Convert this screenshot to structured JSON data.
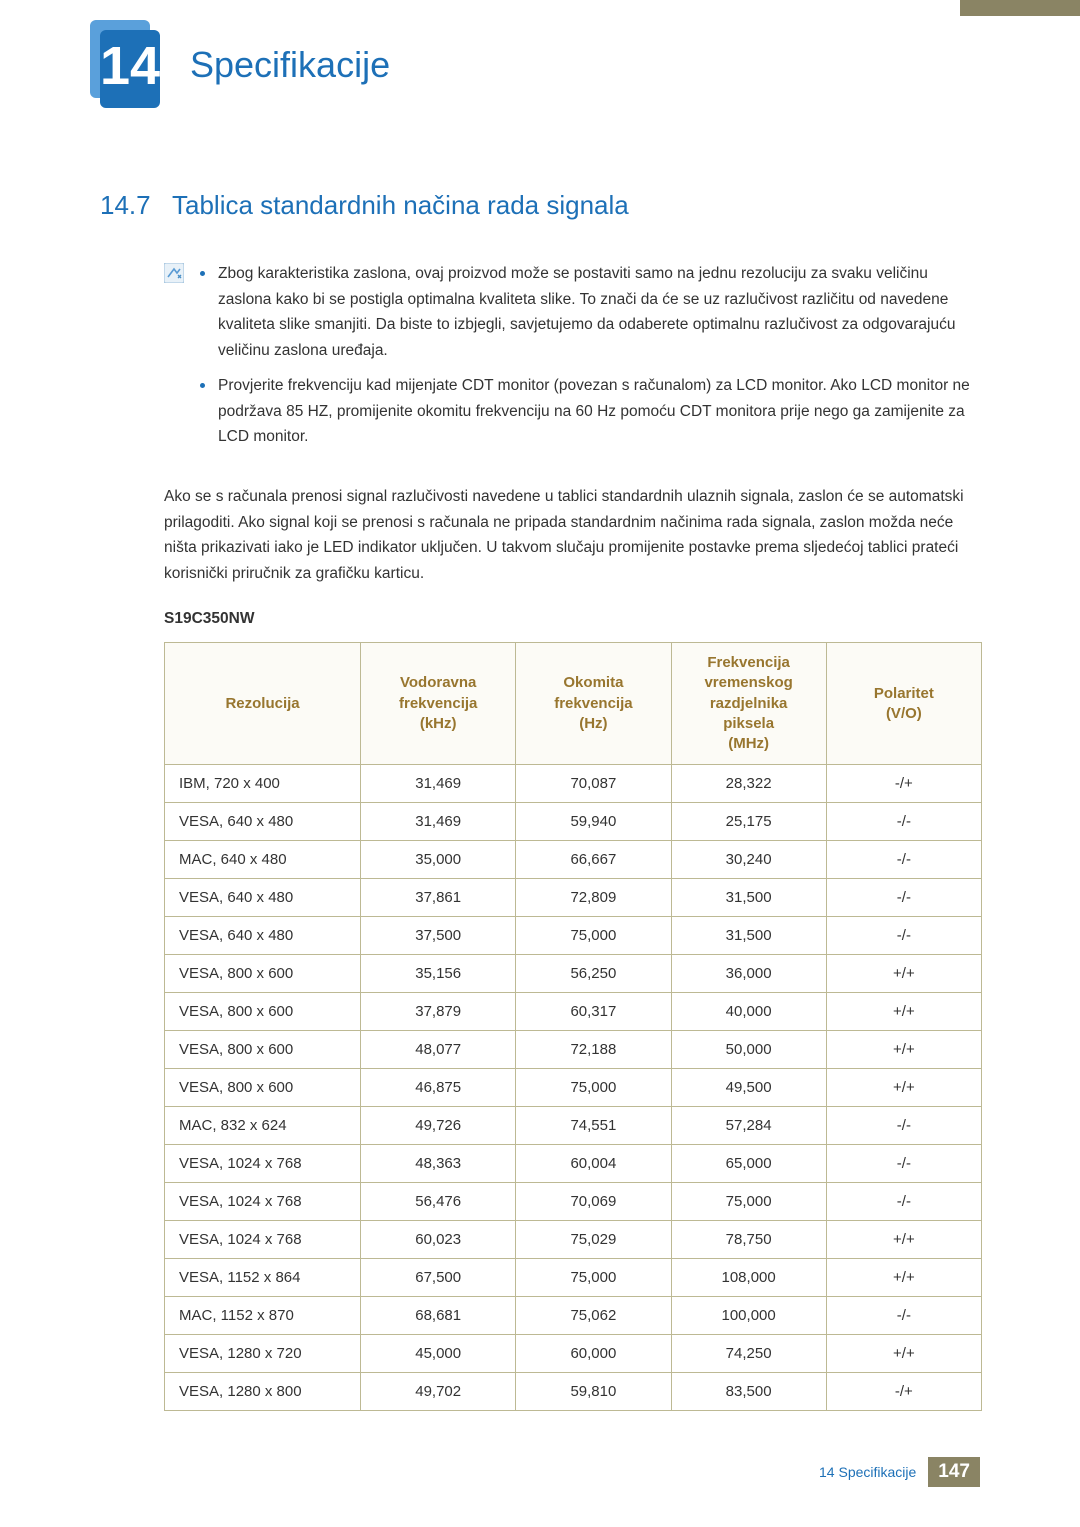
{
  "colors": {
    "accent_blue": "#1d70b7",
    "header_brown": "#98762f",
    "table_border": "#bdb994",
    "table_header_bg": "#fcfbf6",
    "footer_bg": "#8a8464",
    "text": "#333333"
  },
  "chapter": {
    "number": "14",
    "title": "Specifikacije"
  },
  "section": {
    "number": "14.7",
    "title": "Tablica standardnih načina rada signala"
  },
  "notes": [
    "Zbog karakteristika zaslona, ovaj proizvod može se postaviti samo na jednu rezoluciju za svaku veličinu zaslona kako bi se postigla optimalna kvaliteta slike. To znači da će se uz razlučivost različitu od navedene kvaliteta slike smanjiti. Da biste to izbjegli, savjetujemo da odaberete optimalnu razlučivost za odgovarajuću veličinu zaslona uređaja.",
    "Provjerite frekvenciju kad mijenjate CDT monitor (povezan s računalom) za LCD monitor. Ako LCD monitor ne podržava 85 HZ, promijenite okomitu frekvenciju na 60 Hz pomoću CDT monitora prije nego ga zamijenite za LCD monitor."
  ],
  "body_paragraph": "Ako se s računala prenosi signal razlučivosti navedene u tablici standardnih ulaznih signala, zaslon će se automatski prilagoditi. Ako signal koji se prenosi s računala ne pripada standardnim načinima rada signala, zaslon možda neće ništa prikazivati iako je LED indikator uključen. U takvom slučaju promijenite postavke prema sljedećoj tablici prateći korisnički priručnik za grafičku karticu.",
  "model": "S19C350NW",
  "table": {
    "headers": {
      "col1": "Rezolucija",
      "col2_l1": "Vodoravna",
      "col2_l2": "frekvencija",
      "col2_l3": "(kHz)",
      "col3_l1": "Okomita",
      "col3_l2": "frekvencija",
      "col3_l3": "(Hz)",
      "col4_l1": "Frekvencija",
      "col4_l2": "vremenskog",
      "col4_l3": "razdjelnika",
      "col4_l4": "piksela",
      "col4_l5": "(MHz)",
      "col5_l1": "Polaritet",
      "col5_l2": "(V/O)"
    },
    "column_widths": [
      "24%",
      "19%",
      "19%",
      "19%",
      "19%"
    ],
    "rows": [
      [
        "IBM, 720 x 400",
        "31,469",
        "70,087",
        "28,322",
        "-/+"
      ],
      [
        "VESA, 640 x 480",
        "31,469",
        "59,940",
        "25,175",
        "-/-"
      ],
      [
        "MAC, 640 x 480",
        "35,000",
        "66,667",
        "30,240",
        "-/-"
      ],
      [
        "VESA, 640 x 480",
        "37,861",
        "72,809",
        "31,500",
        "-/-"
      ],
      [
        "VESA, 640 x 480",
        "37,500",
        "75,000",
        "31,500",
        "-/-"
      ],
      [
        "VESA, 800 x 600",
        "35,156",
        "56,250",
        "36,000",
        "+/+"
      ],
      [
        "VESA, 800 x 600",
        "37,879",
        "60,317",
        "40,000",
        "+/+"
      ],
      [
        "VESA, 800 x 600",
        "48,077",
        "72,188",
        "50,000",
        "+/+"
      ],
      [
        "VESA, 800 x 600",
        "46,875",
        "75,000",
        "49,500",
        "+/+"
      ],
      [
        "MAC, 832 x 624",
        "49,726",
        "74,551",
        "57,284",
        "-/-"
      ],
      [
        "VESA, 1024 x 768",
        "48,363",
        "60,004",
        "65,000",
        "-/-"
      ],
      [
        "VESA, 1024 x 768",
        "56,476",
        "70,069",
        "75,000",
        "-/-"
      ],
      [
        "VESA, 1024 x 768",
        "60,023",
        "75,029",
        "78,750",
        "+/+"
      ],
      [
        "VESA, 1152 x 864",
        "67,500",
        "75,000",
        "108,000",
        "+/+"
      ],
      [
        "MAC, 1152 x 870",
        "68,681",
        "75,062",
        "100,000",
        "-/-"
      ],
      [
        "VESA, 1280 x 720",
        "45,000",
        "60,000",
        "74,250",
        "+/+"
      ],
      [
        "VESA, 1280 x 800",
        "49,702",
        "59,810",
        "83,500",
        "-/+"
      ]
    ]
  },
  "footer": {
    "chapter_ref": "14 Specifikacije",
    "page_number": "147"
  }
}
